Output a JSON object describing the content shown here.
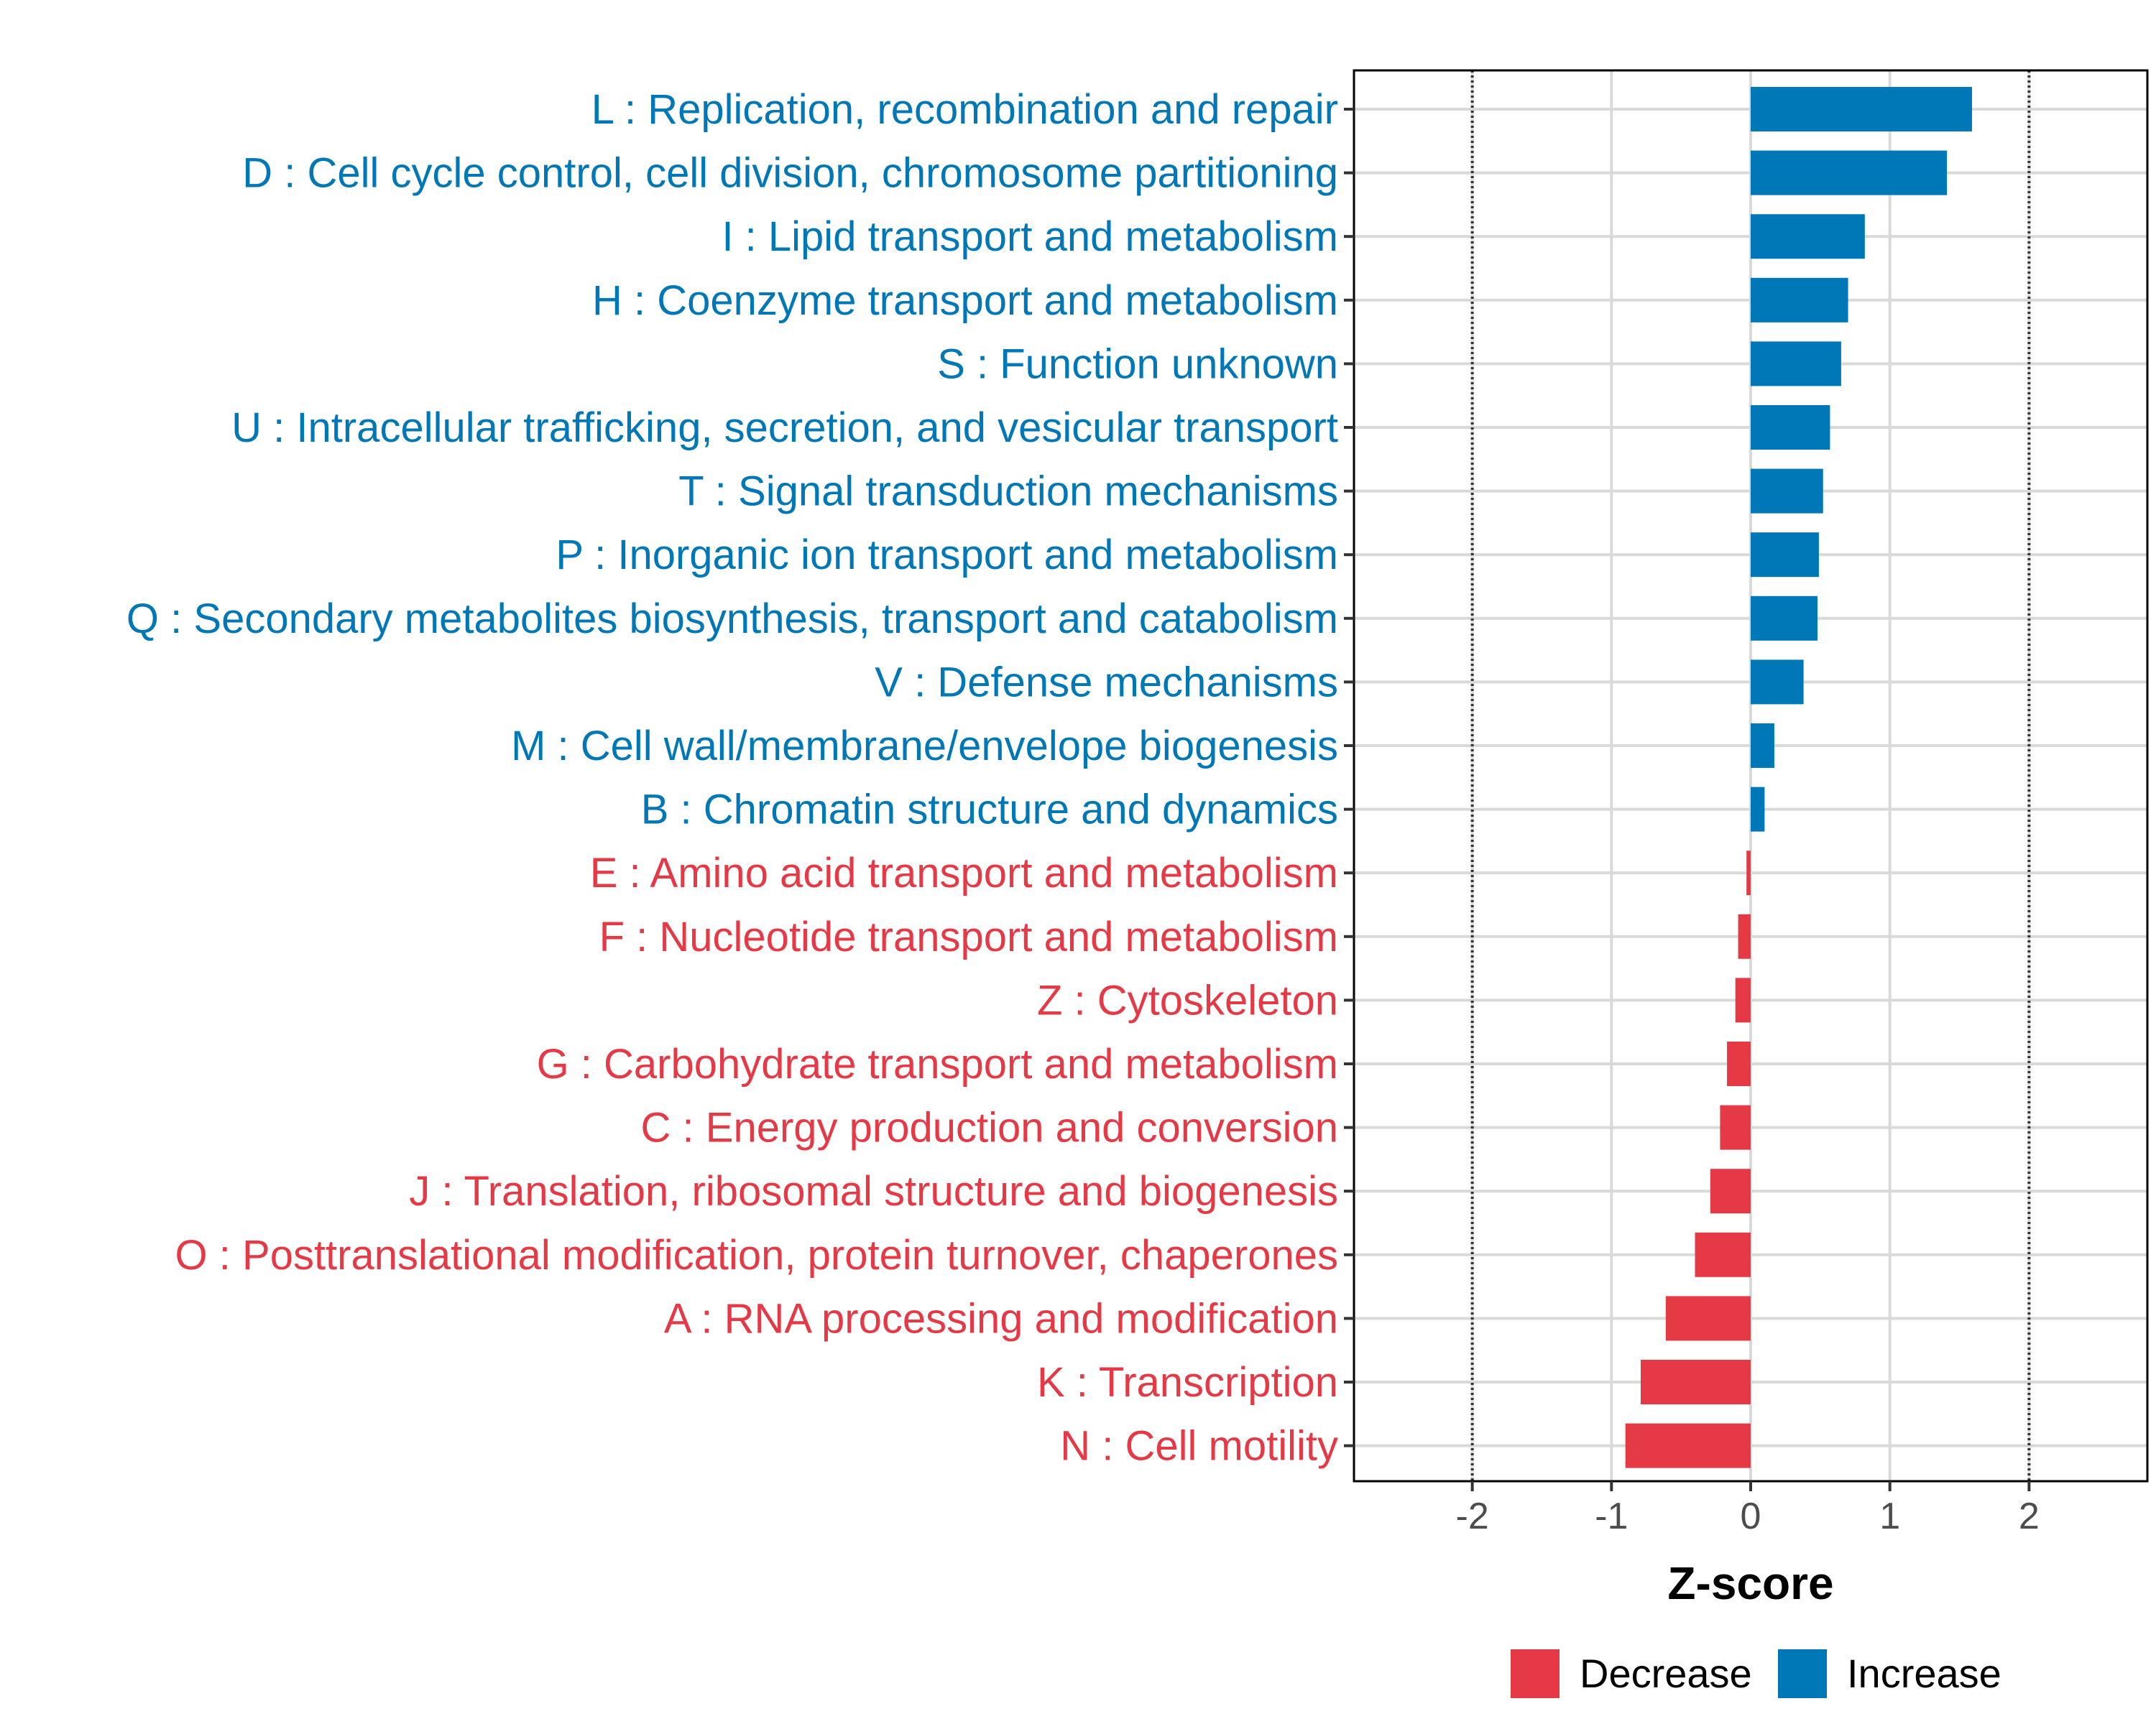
{
  "chart_data": {
    "type": "bar",
    "orientation": "horizontal",
    "xlabel": "Z-score",
    "xlim": [
      -2.85,
      2.85
    ],
    "xticks": [
      -2,
      -1,
      0,
      1,
      2
    ],
    "xtick_labels": [
      "-2",
      "-1",
      "0",
      "1",
      "2"
    ],
    "reference_lines": [
      -2,
      2
    ],
    "grid": true,
    "legend_position": "bottom",
    "colors": {
      "Decrease": "#e63946",
      "Increase": "#0077b6"
    },
    "legend": [
      {
        "name": "Decrease",
        "color": "#e63946"
      },
      {
        "name": "Increase",
        "color": "#0077b6"
      }
    ],
    "categories": [
      {
        "label": "L : Replication, recombination and repair",
        "value": 1.59,
        "group": "Increase"
      },
      {
        "label": "D : Cell cycle control, cell division, chromosome partitioning",
        "value": 1.41,
        "group": "Increase"
      },
      {
        "label": "I : Lipid transport and metabolism",
        "value": 0.82,
        "group": "Increase"
      },
      {
        "label": "H : Coenzyme transport and metabolism",
        "value": 0.7,
        "group": "Increase"
      },
      {
        "label": "S : Function unknown",
        "value": 0.65,
        "group": "Increase"
      },
      {
        "label": "U : Intracellular trafficking, secretion, and vesicular transport",
        "value": 0.57,
        "group": "Increase"
      },
      {
        "label": "T : Signal transduction mechanisms",
        "value": 0.52,
        "group": "Increase"
      },
      {
        "label": "P : Inorganic ion transport and metabolism",
        "value": 0.49,
        "group": "Increase"
      },
      {
        "label": "Q : Secondary metabolites biosynthesis, transport and catabolism",
        "value": 0.48,
        "group": "Increase"
      },
      {
        "label": "V : Defense mechanisms",
        "value": 0.38,
        "group": "Increase"
      },
      {
        "label": "M : Cell wall/membrane/envelope biogenesis",
        "value": 0.17,
        "group": "Increase"
      },
      {
        "label": "B : Chromatin structure and dynamics",
        "value": 0.1,
        "group": "Increase"
      },
      {
        "label": "E : Amino acid transport and metabolism",
        "value": -0.03,
        "group": "Decrease"
      },
      {
        "label": "F : Nucleotide transport and metabolism",
        "value": -0.09,
        "group": "Decrease"
      },
      {
        "label": "Z : Cytoskeleton",
        "value": -0.11,
        "group": "Decrease"
      },
      {
        "label": "G : Carbohydrate transport and metabolism",
        "value": -0.17,
        "group": "Decrease"
      },
      {
        "label": "C : Energy production and conversion",
        "value": -0.22,
        "group": "Decrease"
      },
      {
        "label": "J : Translation, ribosomal structure and biogenesis",
        "value": -0.29,
        "group": "Decrease"
      },
      {
        "label": "O : Posttranslational modification, protein turnover, chaperones",
        "value": -0.4,
        "group": "Decrease"
      },
      {
        "label": "A : RNA processing and modification",
        "value": -0.61,
        "group": "Decrease"
      },
      {
        "label": "K : Transcription",
        "value": -0.79,
        "group": "Decrease"
      },
      {
        "label": "N : Cell motility",
        "value": -0.9,
        "group": "Decrease"
      }
    ]
  }
}
